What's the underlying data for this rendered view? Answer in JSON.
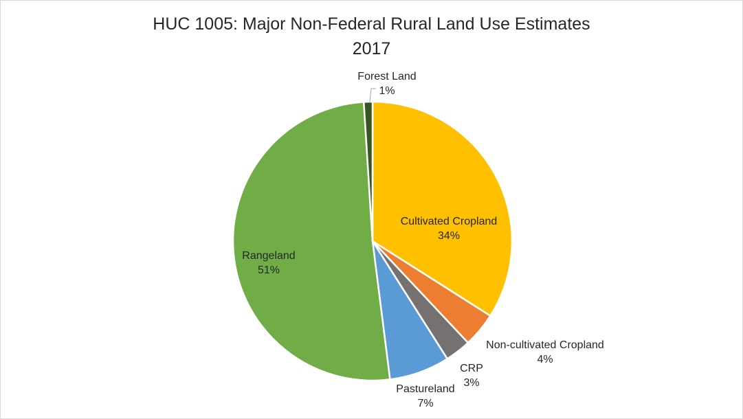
{
  "chart_data": {
    "type": "pie",
    "title": "HUC 1005: Major Non-Federal Rural Land Use Estimates",
    "subtitle": "2017",
    "slices": [
      {
        "label": "Cultivated Cropland",
        "value": 34,
        "pct_label": "34%",
        "color": "#ffc000"
      },
      {
        "label": "Non-cultivated Cropland",
        "value": 4,
        "pct_label": "4%",
        "color": "#ed7d31"
      },
      {
        "label": "CRP",
        "value": 3,
        "pct_label": "3%",
        "color": "#767171"
      },
      {
        "label": "Pastureland",
        "value": 7,
        "pct_label": "7%",
        "color": "#5b9bd5"
      },
      {
        "label": "Rangeland",
        "value": 51,
        "pct_label": "51%",
        "color": "#70ad47"
      },
      {
        "label": "Forest Land",
        "value": 1,
        "pct_label": "1%",
        "color": "#375623"
      }
    ]
  }
}
